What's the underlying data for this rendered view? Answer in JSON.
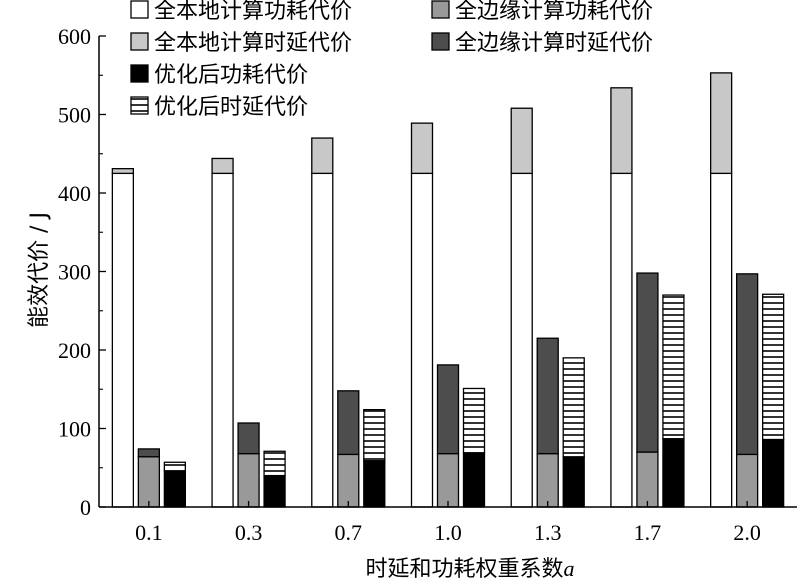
{
  "chart_data": {
    "type": "bar",
    "stacked": true,
    "categories": [
      "0.1",
      "0.3",
      "0.7",
      "1.0",
      "1.3",
      "1.7",
      "2.0"
    ],
    "xlabel": "时延和功耗权重系数",
    "xlabel_var": "a",
    "ylabel": "能效代价 / J",
    "ylim": [
      0,
      600
    ],
    "yticks": [
      "0",
      "100",
      "200",
      "300",
      "400",
      "500",
      "600"
    ],
    "grid": false,
    "legend_position": "top",
    "groups": [
      {
        "name": "全本地计算",
        "segments": [
          {
            "name": "全本地计算功耗代价",
            "color": "#ffffff",
            "pattern": "none",
            "values": [
              425,
              425,
              425,
              425,
              425,
              425,
              425
            ]
          },
          {
            "name": "全本地计算时延代价",
            "color": "#c8c8c8",
            "pattern": "none",
            "values": [
              6,
              19,
              45,
              64,
              83,
              109,
              128
            ]
          }
        ]
      },
      {
        "name": "全边缘计算",
        "segments": [
          {
            "name": "全边缘计算功耗代价",
            "color": "#999999",
            "pattern": "none",
            "values": [
              64,
              68,
              67,
              68,
              68,
              70,
              67
            ]
          },
          {
            "name": "全边缘计算时延代价",
            "color": "#4d4d4d",
            "pattern": "none",
            "values": [
              10,
              39,
              81,
              113,
              147,
              228,
              230
            ]
          }
        ]
      },
      {
        "name": "优化后",
        "segments": [
          {
            "name": "优化后功耗代价",
            "color": "#000000",
            "pattern": "none",
            "values": [
              46,
              40,
              59,
              69,
              64,
              87,
              86
            ]
          },
          {
            "name": "优化后时延代价",
            "color": "#ffffff",
            "pattern": "hstripe",
            "values": [
              11,
              31,
              65,
              82,
              126,
              183,
              185
            ]
          }
        ]
      }
    ],
    "legend": [
      {
        "label": "全本地计算功耗代价",
        "color": "#ffffff",
        "pattern": "none"
      },
      {
        "label": "全边缘计算功耗代价",
        "color": "#999999",
        "pattern": "none"
      },
      {
        "label": "全本地计算时延代价",
        "color": "#c8c8c8",
        "pattern": "none"
      },
      {
        "label": "全边缘计算时延代价",
        "color": "#4d4d4d",
        "pattern": "none"
      },
      {
        "label": "优化后功耗代价",
        "color": "#000000",
        "pattern": "none"
      },
      {
        "label": "优化后时延代价",
        "color": "#ffffff",
        "pattern": "hstripe"
      }
    ]
  }
}
